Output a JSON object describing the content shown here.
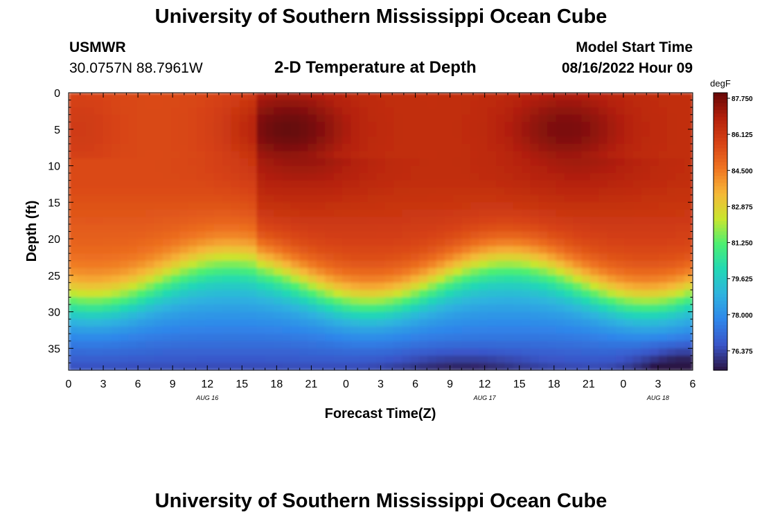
{
  "header": {
    "title": "University of Southern Mississippi Ocean Cube",
    "station": "USMWR",
    "coords": "30.0757N  88.7961W",
    "chart_title": "2-D Temperature at Depth",
    "model_label": "Model Start Time",
    "model_time": "08/16/2022 Hour 09"
  },
  "footer": {
    "title": "University of Southern Mississippi Ocean Cube"
  },
  "colors": {
    "c0": "#2b1544",
    "c1": "#3a55c8",
    "c2": "#2f86ea",
    "c3": "#2fb2df",
    "c4": "#22d8b5",
    "c5": "#4cef72",
    "c6": "#c9e62e",
    "c7": "#f6b738",
    "c8": "#ef7421",
    "c9": "#d74315",
    "c10": "#b3200b",
    "c11": "#650707"
  },
  "chart_data": {
    "type": "heatmap",
    "title": "2-D Temperature at Depth",
    "xlabel": "Forecast Time(Z)",
    "ylabel": "Depth (ft)",
    "x_tick_labels": [
      "0",
      "3",
      "6",
      "9",
      "12",
      "15",
      "18",
      "21",
      "0",
      "3",
      "6",
      "9",
      "12",
      "15",
      "18",
      "21",
      "0",
      "3",
      "6"
    ],
    "x_range": [
      0,
      54
    ],
    "date_labels": [
      {
        "label": "AUG 16",
        "hour": 12
      },
      {
        "label": "AUG 17",
        "hour": 36
      },
      {
        "label": "AUG 18",
        "hour": 51
      }
    ],
    "y_ticks": [
      0,
      5,
      10,
      15,
      20,
      25,
      30,
      35
    ],
    "y_tick_labels": [
      "0",
      "5",
      "10",
      "15",
      "20",
      "25",
      "30",
      "35"
    ],
    "ylim": [
      0,
      38
    ],
    "colorbar": {
      "unit": "degF",
      "labels": [
        "87.750",
        "86.125",
        "84.500",
        "82.875",
        "81.250",
        "79.625",
        "78.000",
        "76.375"
      ],
      "min": 75.5,
      "max": 88.0
    }
  }
}
